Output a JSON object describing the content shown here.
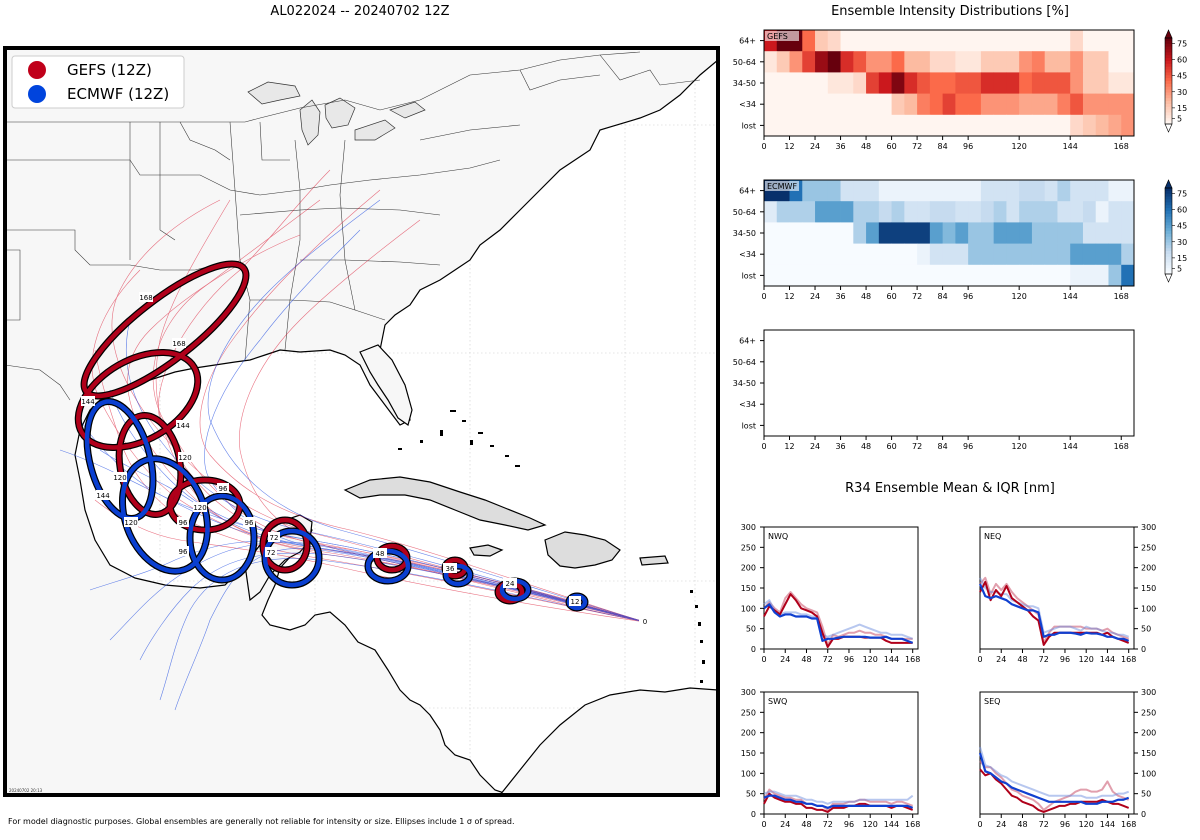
{
  "map": {
    "title": "AL022024 -- 20240702 12Z",
    "legend": [
      {
        "label": "GEFS (12Z)",
        "color": "#c0001a"
      },
      {
        "label": "ECMWF (12Z)",
        "color": "#0044dd"
      }
    ],
    "stamp": "20240702 20:13",
    "footnote": "For model diagnostic purposes. Global ensembles are generally not reliable for intensity or size. Ellipses include 1 σ of spread.",
    "gefs_ellipse_hours": [
      "168",
      "168",
      "144",
      "144",
      "120",
      "96",
      "72",
      "48",
      "36",
      "24",
      "12"
    ],
    "ecmwf_ellipse_hours": [
      "144",
      "120",
      "120",
      "96",
      "96",
      "72",
      "48",
      "36",
      "24",
      "12",
      "0"
    ],
    "colors": {
      "gefs": "#b0001a",
      "ecmwf": "#0a3fd0",
      "land": "#f8f8f8",
      "ocean": "#ffffff",
      "coast": "#000000"
    }
  },
  "intensity": {
    "title": "Ensemble Intensity Distributions [%]",
    "row_labels": [
      "64+",
      "50-64",
      "34-50",
      "<34",
      "lost"
    ],
    "x_ticks": [
      "0",
      "12",
      "24",
      "36",
      "48",
      "60",
      "72",
      "84",
      "96",
      "120",
      "144",
      "168"
    ],
    "x_tick_values": [
      0,
      12,
      24,
      36,
      48,
      60,
      72,
      84,
      96,
      120,
      144,
      168
    ],
    "x_max": 174,
    "colorbar_ticks": [
      "75",
      "60",
      "45",
      "30",
      "15",
      "5"
    ],
    "panels": [
      {
        "name": "GEFS",
        "palette": "reds"
      },
      {
        "name": "ECMWF",
        "palette": "blues"
      },
      {
        "name": "",
        "palette": "none"
      }
    ]
  },
  "r34": {
    "title": "R34 Ensemble Mean & IQR [nm]",
    "y_ticks": [
      "0",
      "50",
      "100",
      "150",
      "200",
      "250",
      "300"
    ],
    "x_ticks": [
      "0",
      "24",
      "48",
      "72",
      "96",
      "120",
      "144",
      "168"
    ],
    "quadrants": [
      "NWQ",
      "NEQ",
      "SWQ",
      "SEQ"
    ]
  },
  "chart_data": [
    {
      "type": "heatmap",
      "title": "GEFS",
      "rows": [
        "64+",
        "50-64",
        "34-50",
        "<34",
        "lost"
      ],
      "columns_hours": [
        0,
        6,
        12,
        18,
        24,
        30,
        36,
        42,
        48,
        54,
        60,
        66,
        72,
        78,
        84,
        90,
        96,
        102,
        108,
        114,
        120,
        126,
        132,
        138,
        144,
        150,
        156,
        162,
        168
      ],
      "values_percent": [
        [
          60,
          80,
          90,
          40,
          15,
          10,
          0,
          0,
          0,
          0,
          0,
          0,
          0,
          0,
          0,
          0,
          0,
          0,
          0,
          0,
          0,
          0,
          0,
          0,
          10,
          0,
          0,
          0,
          0
        ],
        [
          5,
          15,
          30,
          50,
          70,
          90,
          55,
          45,
          30,
          30,
          40,
          20,
          20,
          10,
          10,
          5,
          5,
          15,
          15,
          15,
          30,
          35,
          20,
          20,
          30,
          15,
          15,
          0,
          0
        ],
        [
          0,
          0,
          0,
          0,
          0,
          5,
          5,
          10,
          50,
          60,
          75,
          55,
          45,
          40,
          40,
          45,
          45,
          55,
          55,
          55,
          40,
          45,
          45,
          45,
          30,
          15,
          15,
          5,
          5
        ],
        [
          0,
          0,
          0,
          0,
          0,
          0,
          0,
          0,
          0,
          0,
          15,
          20,
          35,
          40,
          50,
          40,
          40,
          30,
          30,
          30,
          25,
          25,
          25,
          35,
          45,
          30,
          30,
          30,
          30
        ],
        [
          0,
          0,
          0,
          0,
          0,
          0,
          0,
          0,
          0,
          0,
          0,
          0,
          0,
          0,
          0,
          0,
          0,
          0,
          0,
          0,
          0,
          0,
          0,
          0,
          10,
          15,
          20,
          25,
          30
        ]
      ]
    },
    {
      "type": "heatmap",
      "title": "ECMWF",
      "rows": [
        "64+",
        "50-64",
        "34-50",
        "<34",
        "lost"
      ],
      "columns_hours": [
        0,
        6,
        12,
        18,
        24,
        30,
        36,
        42,
        48,
        54,
        60,
        66,
        72,
        78,
        84,
        90,
        96,
        102,
        108,
        114,
        120,
        126,
        132,
        138,
        144,
        150,
        156,
        162,
        168
      ],
      "values_percent": [
        [
          80,
          80,
          60,
          30,
          30,
          30,
          15,
          15,
          15,
          5,
          5,
          5,
          5,
          5,
          5,
          5,
          5,
          15,
          15,
          15,
          20,
          20,
          15,
          25,
          15,
          15,
          15,
          5,
          5
        ],
        [
          10,
          25,
          25,
          25,
          45,
          45,
          45,
          25,
          25,
          20,
          25,
          15,
          15,
          20,
          20,
          15,
          15,
          20,
          25,
          15,
          25,
          25,
          25,
          15,
          15,
          20,
          5,
          15,
          15
        ],
        [
          0,
          0,
          0,
          0,
          0,
          0,
          0,
          25,
          45,
          75,
          75,
          75,
          75,
          45,
          35,
          45,
          30,
          30,
          45,
          45,
          45,
          30,
          30,
          30,
          30,
          15,
          15,
          15,
          15
        ],
        [
          0,
          0,
          0,
          0,
          0,
          0,
          0,
          0,
          0,
          0,
          0,
          0,
          5,
          15,
          15,
          15,
          30,
          30,
          30,
          30,
          30,
          30,
          30,
          30,
          45,
          45,
          45,
          45,
          25
        ],
        [
          0,
          0,
          0,
          0,
          0,
          0,
          0,
          0,
          0,
          0,
          0,
          0,
          0,
          0,
          0,
          0,
          0,
          0,
          0,
          0,
          0,
          0,
          0,
          0,
          5,
          5,
          5,
          30,
          60
        ]
      ]
    },
    {
      "type": "heatmap",
      "title": "",
      "rows": [
        "64+",
        "50-64",
        "34-50",
        "<34",
        "lost"
      ],
      "columns_hours": [],
      "values_percent": []
    },
    {
      "type": "line",
      "title": "NWQ",
      "x": [
        0,
        6,
        12,
        18,
        24,
        30,
        36,
        42,
        48,
        54,
        60,
        66,
        72,
        78,
        84,
        90,
        96,
        102,
        108,
        114,
        120,
        126,
        132,
        138,
        144,
        150,
        156,
        162,
        168
      ],
      "ylim": [
        0,
        300
      ],
      "xlim": [
        0,
        174
      ],
      "series": [
        {
          "name": "GEFS mean",
          "values": [
            80,
            105,
            95,
            85,
            110,
            135,
            120,
            100,
            95,
            90,
            80,
            40,
            5,
            25,
            25,
            30,
            30,
            30,
            30,
            28,
            28,
            28,
            28,
            20,
            15,
            15,
            15,
            15,
            15
          ]
        },
        {
          "name": "GEFS IQR",
          "values": [
            100,
            115,
            100,
            90,
            125,
            140,
            125,
            110,
            100,
            95,
            90,
            55,
            10,
            35,
            30,
            35,
            40,
            40,
            45,
            40,
            40,
            35,
            35,
            30,
            25,
            25,
            25,
            25,
            25
          ]
        },
        {
          "name": "ECMWF mean",
          "values": [
            100,
            110,
            90,
            80,
            85,
            85,
            80,
            80,
            80,
            75,
            75,
            20,
            25,
            25,
            28,
            30,
            30,
            30,
            30,
            30,
            28,
            28,
            28,
            30,
            25,
            25,
            25,
            20,
            15
          ]
        },
        {
          "name": "ECMWF IQR",
          "values": [
            110,
            120,
            95,
            85,
            90,
            90,
            90,
            85,
            85,
            80,
            80,
            35,
            30,
            35,
            40,
            45,
            50,
            55,
            60,
            55,
            50,
            45,
            40,
            40,
            35,
            35,
            35,
            30,
            25
          ]
        }
      ]
    },
    {
      "type": "line",
      "title": "NEQ",
      "x": [
        0,
        6,
        12,
        18,
        24,
        30,
        36,
        42,
        48,
        54,
        60,
        66,
        72,
        78,
        84,
        90,
        96,
        102,
        108,
        114,
        120,
        126,
        132,
        138,
        144,
        150,
        156,
        162,
        168
      ],
      "ylim": [
        0,
        300
      ],
      "xlim": [
        0,
        174
      ],
      "series": [
        {
          "name": "GEFS mean",
          "values": [
            140,
            165,
            120,
            145,
            130,
            155,
            125,
            115,
            105,
            95,
            80,
            70,
            10,
            30,
            40,
            40,
            40,
            40,
            40,
            40,
            40,
            40,
            40,
            35,
            40,
            30,
            25,
            20,
            15
          ]
        },
        {
          "name": "GEFS IQR",
          "values": [
            160,
            175,
            135,
            160,
            145,
            160,
            140,
            125,
            115,
            105,
            95,
            85,
            15,
            40,
            55,
            55,
            55,
            55,
            55,
            55,
            50,
            50,
            50,
            45,
            50,
            40,
            35,
            30,
            25
          ]
        },
        {
          "name": "ECMWF mean",
          "values": [
            160,
            130,
            125,
            130,
            125,
            120,
            110,
            105,
            100,
            95,
            95,
            90,
            30,
            35,
            35,
            40,
            40,
            40,
            38,
            35,
            40,
            38,
            38,
            35,
            30,
            30,
            25,
            25,
            20
          ]
        },
        {
          "name": "ECMWF IQR",
          "values": [
            175,
            150,
            140,
            140,
            135,
            135,
            120,
            115,
            110,
            105,
            105,
            100,
            40,
            45,
            50,
            55,
            55,
            55,
            50,
            45,
            55,
            50,
            50,
            45,
            40,
            40,
            35,
            35,
            30
          ]
        }
      ]
    },
    {
      "type": "line",
      "title": "SWQ",
      "x": [
        0,
        6,
        12,
        18,
        24,
        30,
        36,
        42,
        48,
        54,
        60,
        66,
        72,
        78,
        84,
        90,
        96,
        102,
        108,
        114,
        120,
        126,
        132,
        138,
        144,
        150,
        156,
        162,
        168
      ],
      "ylim": [
        0,
        300
      ],
      "xlim": [
        0,
        174
      ],
      "series": [
        {
          "name": "GEFS mean",
          "values": [
            25,
            50,
            40,
            35,
            30,
            30,
            25,
            25,
            15,
            15,
            10,
            10,
            5,
            15,
            15,
            15,
            20,
            20,
            25,
            25,
            20,
            20,
            20,
            20,
            15,
            20,
            20,
            15,
            10
          ]
        },
        {
          "name": "GEFS IQR",
          "values": [
            35,
            60,
            50,
            45,
            40,
            40,
            35,
            35,
            25,
            25,
            20,
            20,
            10,
            25,
            25,
            25,
            30,
            30,
            35,
            35,
            30,
            30,
            30,
            30,
            25,
            30,
            30,
            25,
            20
          ]
        },
        {
          "name": "ECMWF mean",
          "values": [
            40,
            45,
            45,
            40,
            35,
            35,
            30,
            30,
            25,
            25,
            20,
            20,
            15,
            20,
            20,
            20,
            20,
            20,
            20,
            20,
            20,
            20,
            20,
            20,
            20,
            20,
            20,
            20,
            15
          ]
        },
        {
          "name": "ECMWF IQR",
          "values": [
            50,
            55,
            55,
            50,
            45,
            45,
            45,
            40,
            35,
            35,
            30,
            30,
            25,
            30,
            30,
            30,
            30,
            30,
            35,
            35,
            35,
            35,
            35,
            35,
            35,
            35,
            35,
            35,
            45
          ]
        }
      ]
    },
    {
      "type": "line",
      "title": "SEQ",
      "x": [
        0,
        6,
        12,
        18,
        24,
        30,
        36,
        42,
        48,
        54,
        60,
        66,
        72,
        78,
        84,
        90,
        96,
        102,
        108,
        114,
        120,
        126,
        132,
        138,
        144,
        150,
        156,
        162,
        168
      ],
      "ylim": [
        0,
        300
      ],
      "xlim": [
        0,
        174
      ],
      "series": [
        {
          "name": "GEFS mean",
          "values": [
            110,
            95,
            100,
            85,
            75,
            60,
            45,
            40,
            30,
            25,
            20,
            10,
            5,
            10,
            15,
            20,
            20,
            25,
            25,
            30,
            30,
            30,
            30,
            35,
            30,
            25,
            25,
            20,
            15
          ]
        },
        {
          "name": "GEFS IQR",
          "values": [
            130,
            115,
            115,
            100,
            90,
            75,
            60,
            55,
            45,
            40,
            35,
            25,
            10,
            20,
            30,
            35,
            40,
            45,
            55,
            60,
            60,
            55,
            55,
            60,
            80,
            55,
            45,
            40,
            35
          ]
        },
        {
          "name": "ECMWF mean",
          "values": [
            150,
            105,
            100,
            90,
            80,
            75,
            65,
            60,
            55,
            50,
            45,
            40,
            35,
            30,
            30,
            30,
            30,
            30,
            30,
            30,
            25,
            25,
            25,
            30,
            30,
            30,
            35,
            35,
            40
          ]
        },
        {
          "name": "ECMWF IQR",
          "values": [
            165,
            120,
            115,
            105,
            95,
            90,
            80,
            75,
            70,
            65,
            60,
            55,
            50,
            45,
            45,
            45,
            45,
            45,
            45,
            45,
            40,
            40,
            40,
            45,
            45,
            45,
            50,
            50,
            55
          ]
        }
      ]
    }
  ]
}
